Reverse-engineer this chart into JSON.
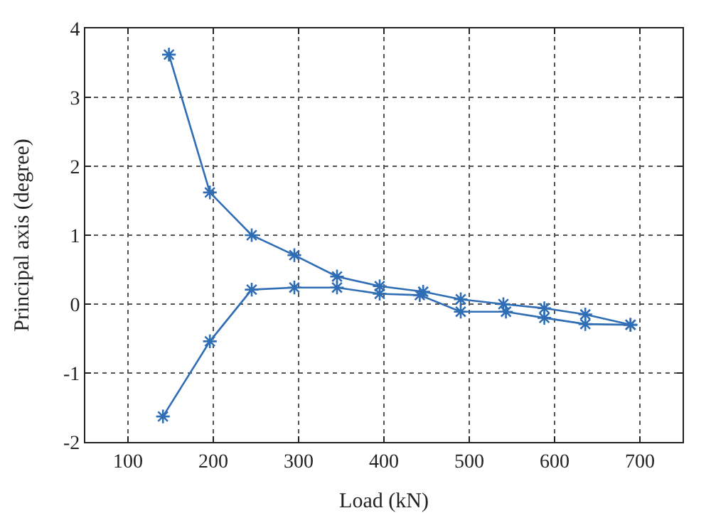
{
  "chart_data": {
    "type": "line",
    "xlabel": "Load (kN)",
    "ylabel": "Principal axis (degree)",
    "xlim": [
      50,
      750
    ],
    "xticks": [
      100,
      200,
      300,
      400,
      500,
      600,
      700
    ],
    "ylim": [
      -2,
      4
    ],
    "yticks": [
      -2,
      -1,
      0,
      1,
      2,
      3,
      4
    ],
    "grid": true,
    "marker": "cross",
    "line_style": "solid",
    "series": [
      {
        "color": "#2f6db5",
        "x": [
          148,
          196,
          245,
          295,
          345,
          395,
          446,
          490,
          540,
          588,
          636,
          689
        ],
        "values": [
          3.62,
          1.62,
          1.0,
          0.71,
          0.4,
          0.26,
          0.18,
          0.07,
          0.0,
          -0.06,
          -0.15,
          -0.3
        ]
      },
      {
        "color": "#2f6db5",
        "x": [
          689,
          636,
          588,
          543,
          490,
          442,
          395,
          345,
          295,
          245,
          196,
          141
        ],
        "values": [
          -0.3,
          -0.29,
          -0.2,
          -0.11,
          -0.11,
          0.13,
          0.15,
          0.24,
          0.24,
          0.21,
          -0.54,
          -1.63
        ]
      }
    ]
  }
}
